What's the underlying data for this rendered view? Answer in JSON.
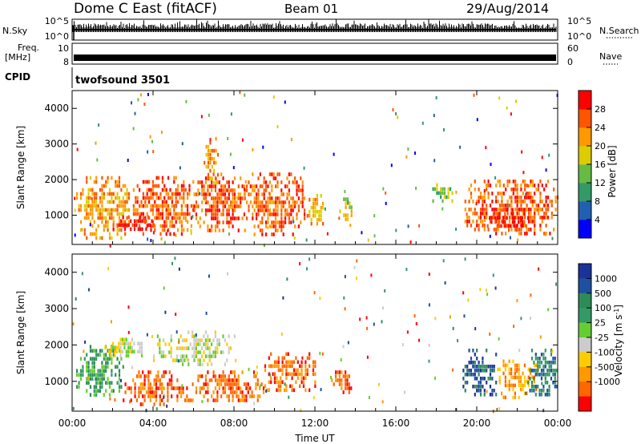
{
  "header": {
    "station": "Dome C East (fitACF)",
    "beam": "Beam 01",
    "date": "29/Aug/2014"
  },
  "noise_panel": {
    "left_label": "N.Sky",
    "left_ticks": [
      "10^5",
      "10^0"
    ],
    "right_label": "N.Search",
    "right_ticks": [
      "10^5",
      "10^0"
    ]
  },
  "freq_panel": {
    "left_label_1": "Freq.",
    "left_label_2": "[MHz]",
    "left_ticks": [
      "10",
      "8"
    ],
    "right_label": "Nave",
    "right_ticks": [
      "60",
      "0"
    ]
  },
  "cpid_panel": {
    "label": "CPID",
    "program": "twofsound 3501"
  },
  "colors": {
    "power": [
      "#0000ff",
      "#2060b0",
      "#339966",
      "#66bb44",
      "#ddcc00",
      "#ff9900",
      "#ff5500",
      "#ff0000"
    ],
    "velocity": [
      "#ff0000",
      "#ff6600",
      "#ff9900",
      "#ffcc00",
      "#cccccc",
      "#66cc33",
      "#339966",
      "#2e8b57",
      "#1f4fa0",
      "#1a3399"
    ]
  },
  "chart_data": [
    {
      "type": "heatmap",
      "title": "",
      "ylabel": "Slant Range [km]",
      "yticks": [
        "1000",
        "2000",
        "3000",
        "4000"
      ],
      "ylim": [
        180,
        4500
      ],
      "xlim": [
        0,
        24
      ],
      "colorbar_label": "Power [dB]",
      "colorbar_ticks": [
        "4",
        "8",
        "12",
        "16",
        "20",
        "24",
        "28"
      ],
      "blobs": [
        {
          "t": [
            0.2,
            3.0
          ],
          "r": [
            400,
            2100
          ],
          "level": 5
        },
        {
          "t": [
            3.0,
            6.0
          ],
          "r": [
            500,
            2100
          ],
          "level": 6
        },
        {
          "t": [
            6.0,
            8.5
          ],
          "r": [
            600,
            2200
          ],
          "level": 6
        },
        {
          "t": [
            8.5,
            11.5
          ],
          "r": [
            500,
            2200
          ],
          "level": 6
        },
        {
          "t": [
            2.0,
            4.0
          ],
          "r": [
            600,
            1000
          ],
          "level": 7
        },
        {
          "t": [
            6.5,
            7.2
          ],
          "r": [
            1900,
            3200
          ],
          "level": 5
        },
        {
          "t": [
            11.5,
            12.5
          ],
          "r": [
            700,
            1600
          ],
          "level": 5
        },
        {
          "t": [
            13.2,
            13.8
          ],
          "r": [
            900,
            1500
          ],
          "level": 4
        },
        {
          "t": [
            17.8,
            18.8
          ],
          "r": [
            1400,
            1900
          ],
          "level": 3
        },
        {
          "t": [
            19.3,
            24.0
          ],
          "r": [
            500,
            2000
          ],
          "level": 6
        },
        {
          "t": [
            20.5,
            22.5
          ],
          "r": [
            600,
            1200
          ],
          "level": 7
        }
      ]
    },
    {
      "type": "heatmap",
      "title": "",
      "ylabel": "Slant Range [km]",
      "yticks": [
        "1000",
        "2000",
        "3000",
        "4000"
      ],
      "ylim": [
        180,
        4500
      ],
      "xlim": [
        0,
        24
      ],
      "xlabel": "Time UT",
      "xticks": [
        "00:00",
        "04:00",
        "08:00",
        "12:00",
        "16:00",
        "20:00",
        "00:00"
      ],
      "colorbar_label": "Velocity [m s^-1]",
      "colorbar_ticks": [
        "1000",
        "500",
        "100",
        "25",
        "-25",
        "-100",
        "-500",
        "-1000"
      ],
      "blobs": [
        {
          "t": [
            0.2,
            2.5
          ],
          "r": [
            600,
            2000
          ],
          "level": 6
        },
        {
          "t": [
            1.5,
            3.5
          ],
          "r": [
            1700,
            2200
          ],
          "level": 4
        },
        {
          "t": [
            2.5,
            6.0
          ],
          "r": [
            400,
            1300
          ],
          "level": 1
        },
        {
          "t": [
            4.0,
            8.0
          ],
          "r": [
            1500,
            2400
          ],
          "level": 4
        },
        {
          "t": [
            6.0,
            9.5
          ],
          "r": [
            500,
            1300
          ],
          "level": 1
        },
        {
          "t": [
            9.5,
            12.0
          ],
          "r": [
            700,
            1800
          ],
          "level": 1
        },
        {
          "t": [
            12.8,
            13.8
          ],
          "r": [
            700,
            1300
          ],
          "level": 1
        },
        {
          "t": [
            19.3,
            21.0
          ],
          "r": [
            600,
            1900
          ],
          "level": 8
        },
        {
          "t": [
            21.0,
            23.0
          ],
          "r": [
            600,
            1600
          ],
          "level": 2
        },
        {
          "t": [
            22.5,
            24.0
          ],
          "r": [
            600,
            1900
          ],
          "level": 7
        }
      ]
    }
  ],
  "xaxis": {
    "ticks": [
      "00:00",
      "04:00",
      "08:00",
      "12:00",
      "16:00",
      "20:00",
      "00:00"
    ],
    "label": "Time UT"
  }
}
